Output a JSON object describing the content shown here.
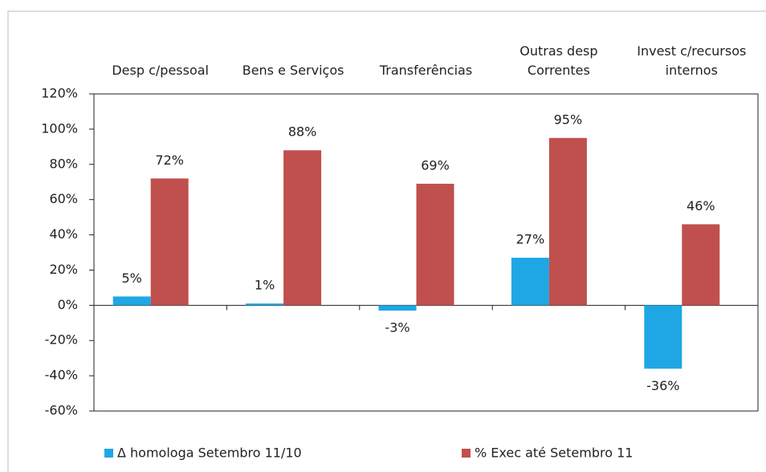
{
  "chart_data": {
    "type": "bar",
    "categories": [
      "Desp c/pessoal",
      "Bens e Serviços",
      "Transferências",
      "Outras desp Correntes",
      "Invest c/recursos internos"
    ],
    "series": [
      {
        "name": "Δ homologa Setembro 11/10",
        "color": "#1ea7e4",
        "values": [
          5,
          1,
          -3,
          27,
          -36
        ],
        "value_labels": [
          "5%",
          "1%",
          "-3%",
          "27%",
          "-36%"
        ]
      },
      {
        "name": "% Exec até Setembro 11",
        "color": "#c0504d",
        "values": [
          72,
          88,
          69,
          95,
          46
        ],
        "value_labels": [
          "72%",
          "88%",
          "69%",
          "95%",
          "46%"
        ]
      }
    ],
    "ylim": [
      -60,
      120
    ],
    "yticks": [
      {
        "value": -60,
        "label": "-60%"
      },
      {
        "value": -40,
        "label": "-40%"
      },
      {
        "value": -20,
        "label": "-20%"
      },
      {
        "value": 0,
        "label": "0%"
      },
      {
        "value": 20,
        "label": "20%"
      },
      {
        "value": 40,
        "label": "40%"
      },
      {
        "value": 60,
        "label": "60%"
      },
      {
        "value": 80,
        "label": "80%"
      },
      {
        "value": 100,
        "label": "100%"
      },
      {
        "value": 120,
        "label": "120%"
      }
    ],
    "grid": false,
    "legend": "bottom"
  }
}
